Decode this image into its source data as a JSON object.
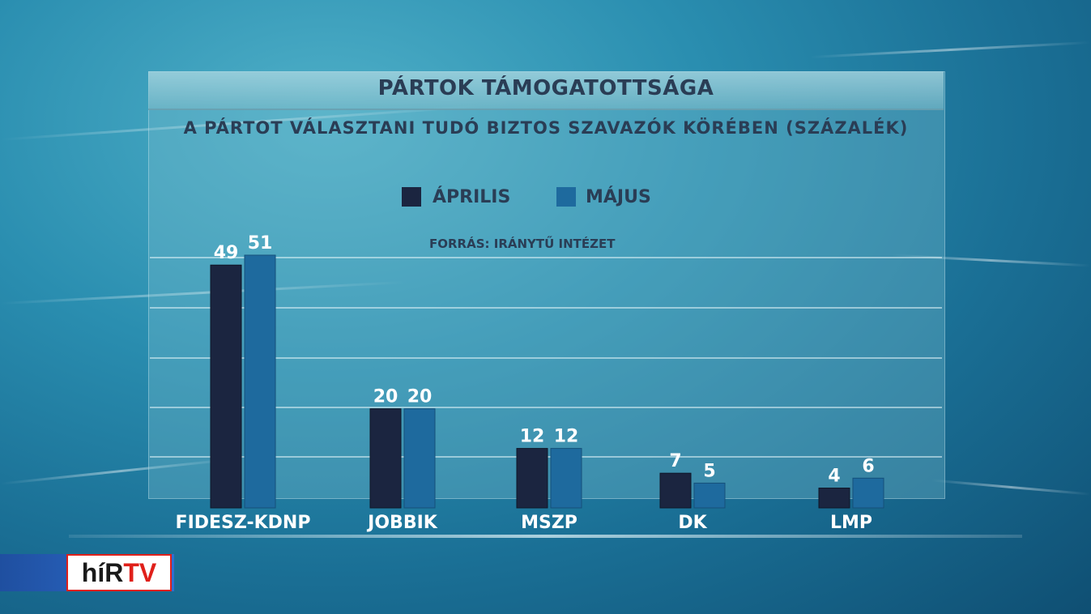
{
  "chart_data": {
    "type": "bar",
    "title": "PÁRTOK TÁMOGATOTTSÁGA",
    "subtitle": "A PÁRTOT VÁLASZTANI TUDÓ BIZTOS SZAVAZÓK KÖRÉBEN (SZÁZALÉK)",
    "source": "FORRÁS: IRÁNYTŰ INTÉZET",
    "categories": [
      "FIDESZ-KDNP",
      "JOBBIK",
      "MSZP",
      "DK",
      "LMP"
    ],
    "series": [
      {
        "name": "ÁPRILIS",
        "values": [
          49,
          20,
          12,
          7,
          4
        ],
        "color": "#1b2540"
      },
      {
        "name": "MÁJUS",
        "values": [
          51,
          20,
          12,
          5,
          6
        ],
        "color": "#1e6a9e"
      }
    ],
    "ylim": [
      0,
      51
    ],
    "grid": true,
    "legend": "top-center"
  },
  "logo": {
    "part1": "híR",
    "part2": "TV"
  }
}
